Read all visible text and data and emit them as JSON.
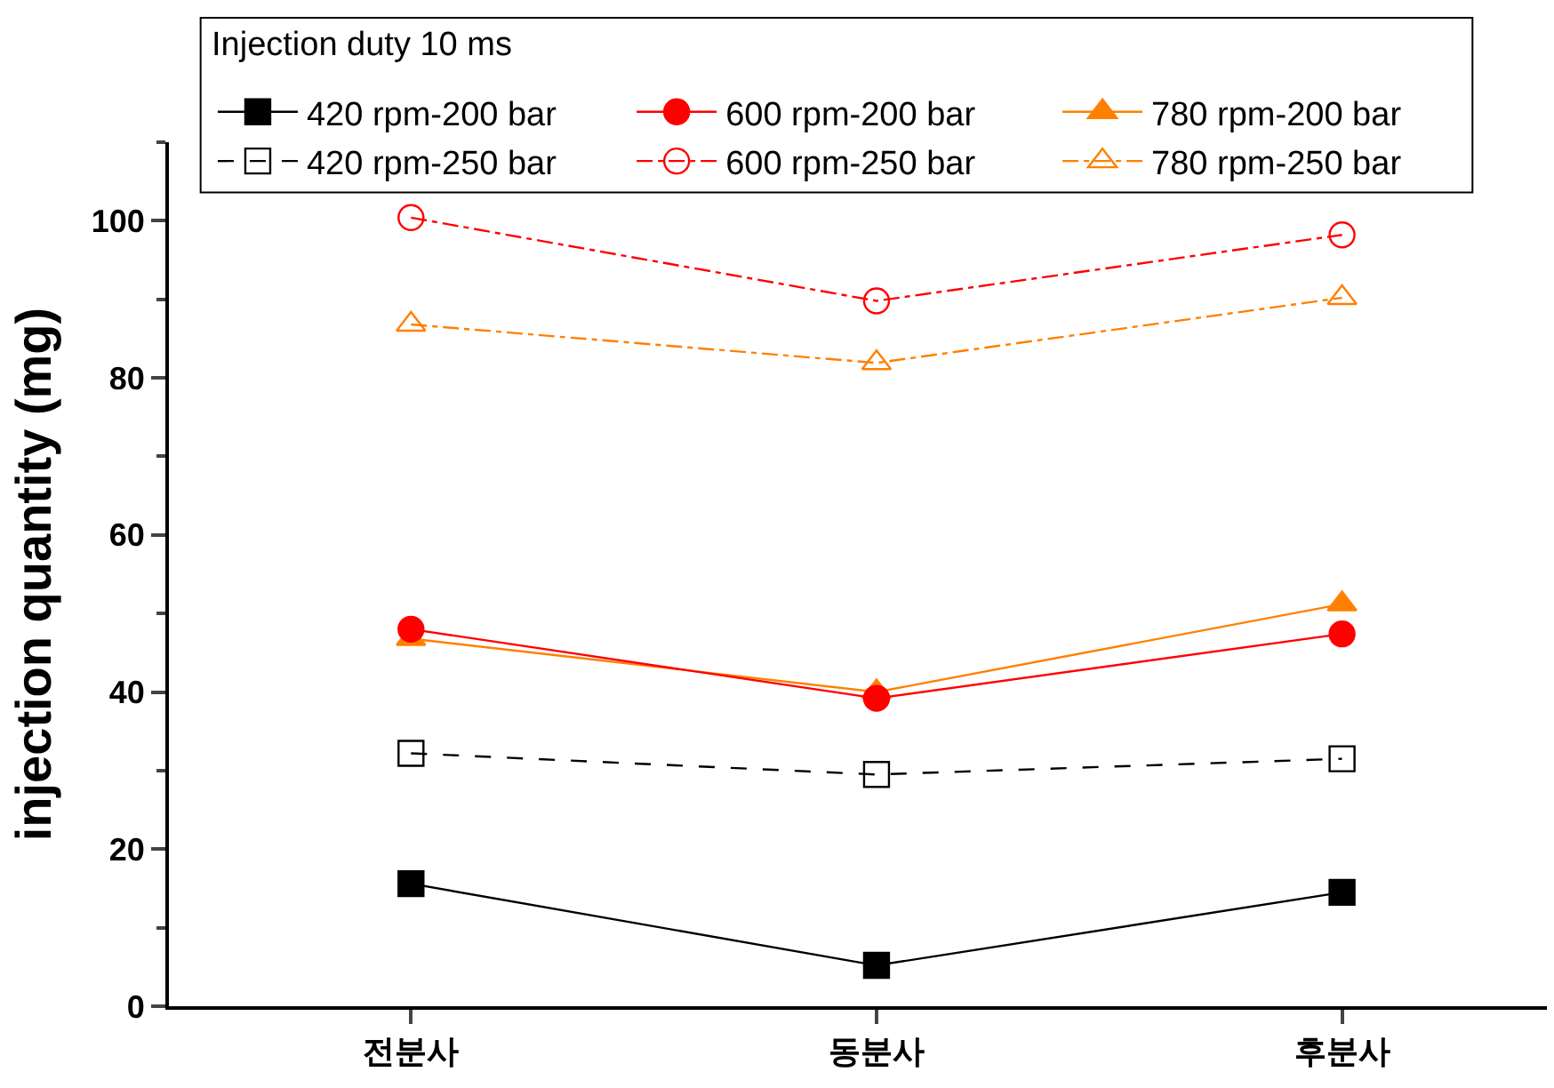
{
  "chart_data": {
    "type": "line",
    "ylabel": "injection quantity (mg)",
    "legend_title": "Injection duty 10 ms",
    "legend": "top",
    "categories": [
      "전분사",
      "동분사",
      "후분사"
    ],
    "ylim": [
      0,
      110
    ],
    "yticks": [
      0,
      20,
      40,
      60,
      80,
      100
    ],
    "grid": false,
    "series": [
      {
        "name": "420 rpm-200 bar",
        "color": "#000000",
        "marker": "square",
        "line_style": "solid",
        "values": [
          15.6,
          5.2,
          14.5
        ]
      },
      {
        "name": "600 rpm-200 bar",
        "color": "#ff0000",
        "marker": "circle",
        "line_style": "solid",
        "values": [
          48.0,
          39.2,
          47.4
        ]
      },
      {
        "name": "780 rpm-200 bar",
        "color": "#ff8000",
        "marker": "triangle",
        "line_style": "solid",
        "values": [
          46.8,
          40.0,
          51.2
        ]
      },
      {
        "name": "420 rpm-250 bar",
        "color": "#000000",
        "marker": "square-open",
        "line_style": "dashed",
        "values": [
          32.2,
          29.5,
          31.5
        ]
      },
      {
        "name": "600 rpm-250 bar",
        "color": "#ff0000",
        "marker": "circle-open",
        "line_style": "dashdot",
        "values": [
          100.4,
          89.8,
          98.2
        ]
      },
      {
        "name": "780 rpm-250 bar",
        "color": "#ff8000",
        "marker": "triangle-open",
        "line_style": "dashdot",
        "values": [
          86.8,
          81.9,
          90.2
        ]
      }
    ]
  }
}
